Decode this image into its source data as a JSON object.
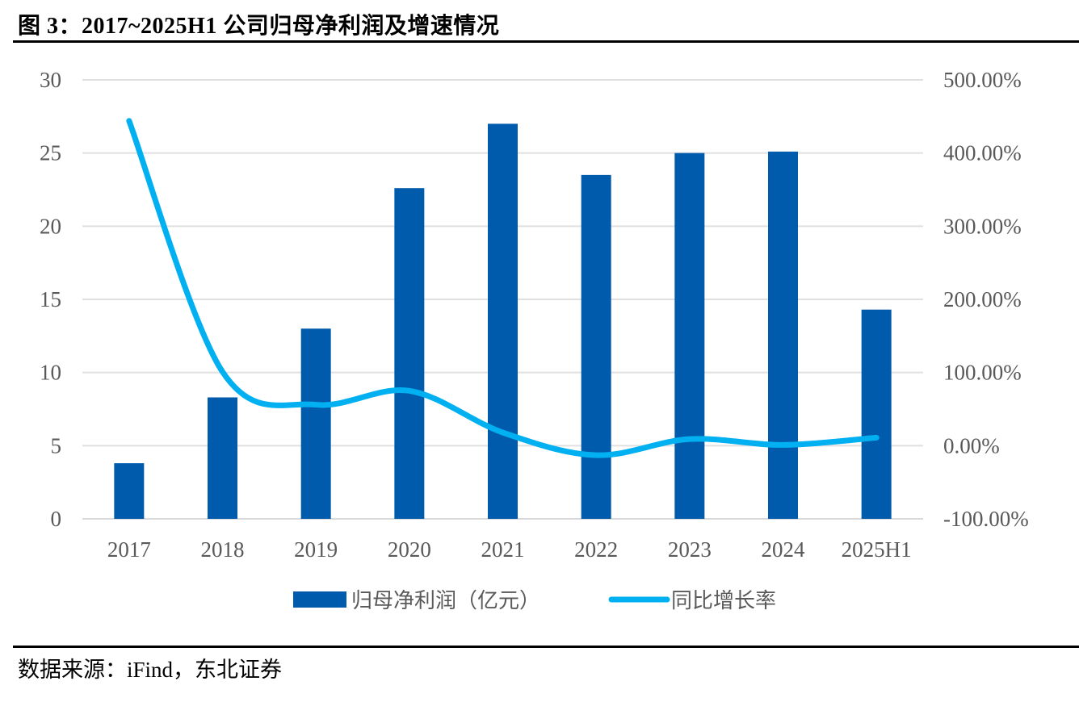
{
  "figure": {
    "title": "图 3：2017~2025H1 公司归母净利润及增速情况",
    "source": "数据来源：iFind，东北证券"
  },
  "colors": {
    "bar": "#005BAC",
    "line": "#00B0F0",
    "grid": "#E0E0E0",
    "tick_text": "#595959"
  },
  "chart_data": {
    "type": "bar",
    "title": "2017~2025H1 公司归母净利润及增速情况",
    "xlabel": "",
    "ylabel": "",
    "categories": [
      "2017",
      "2018",
      "2019",
      "2020",
      "2021",
      "2022",
      "2023",
      "2024",
      "2025H1"
    ],
    "series": [
      {
        "name": "归母净利润（亿元）",
        "type": "bar",
        "axis": "left",
        "values": [
          3.8,
          8.3,
          13.0,
          22.6,
          27.0,
          23.5,
          25.0,
          25.1,
          14.3
        ]
      },
      {
        "name": "同比增长率",
        "type": "line",
        "smooth": true,
        "axis": "right",
        "unit": "%",
        "values": [
          444,
          101,
          56,
          75,
          18,
          -13,
          9,
          1,
          11
        ]
      }
    ],
    "ylim": [
      0,
      30
    ],
    "y_ticks": [
      0,
      5,
      10,
      15,
      20,
      25,
      30
    ],
    "y_tick_labels": [
      "0",
      "5",
      "10",
      "15",
      "20",
      "25",
      "30"
    ],
    "y2lim": [
      -100,
      500
    ],
    "y2_ticks": [
      -100,
      0,
      100,
      200,
      300,
      400,
      500
    ],
    "y2_tick_labels": [
      "-100.00%",
      "0.00%",
      "100.00%",
      "200.00%",
      "300.00%",
      "400.00%",
      "500.00%"
    ],
    "grid": true,
    "legend": {
      "placement": "bottom-center",
      "entries": [
        "归母净利润（亿元）",
        "同比增长率"
      ]
    }
  }
}
